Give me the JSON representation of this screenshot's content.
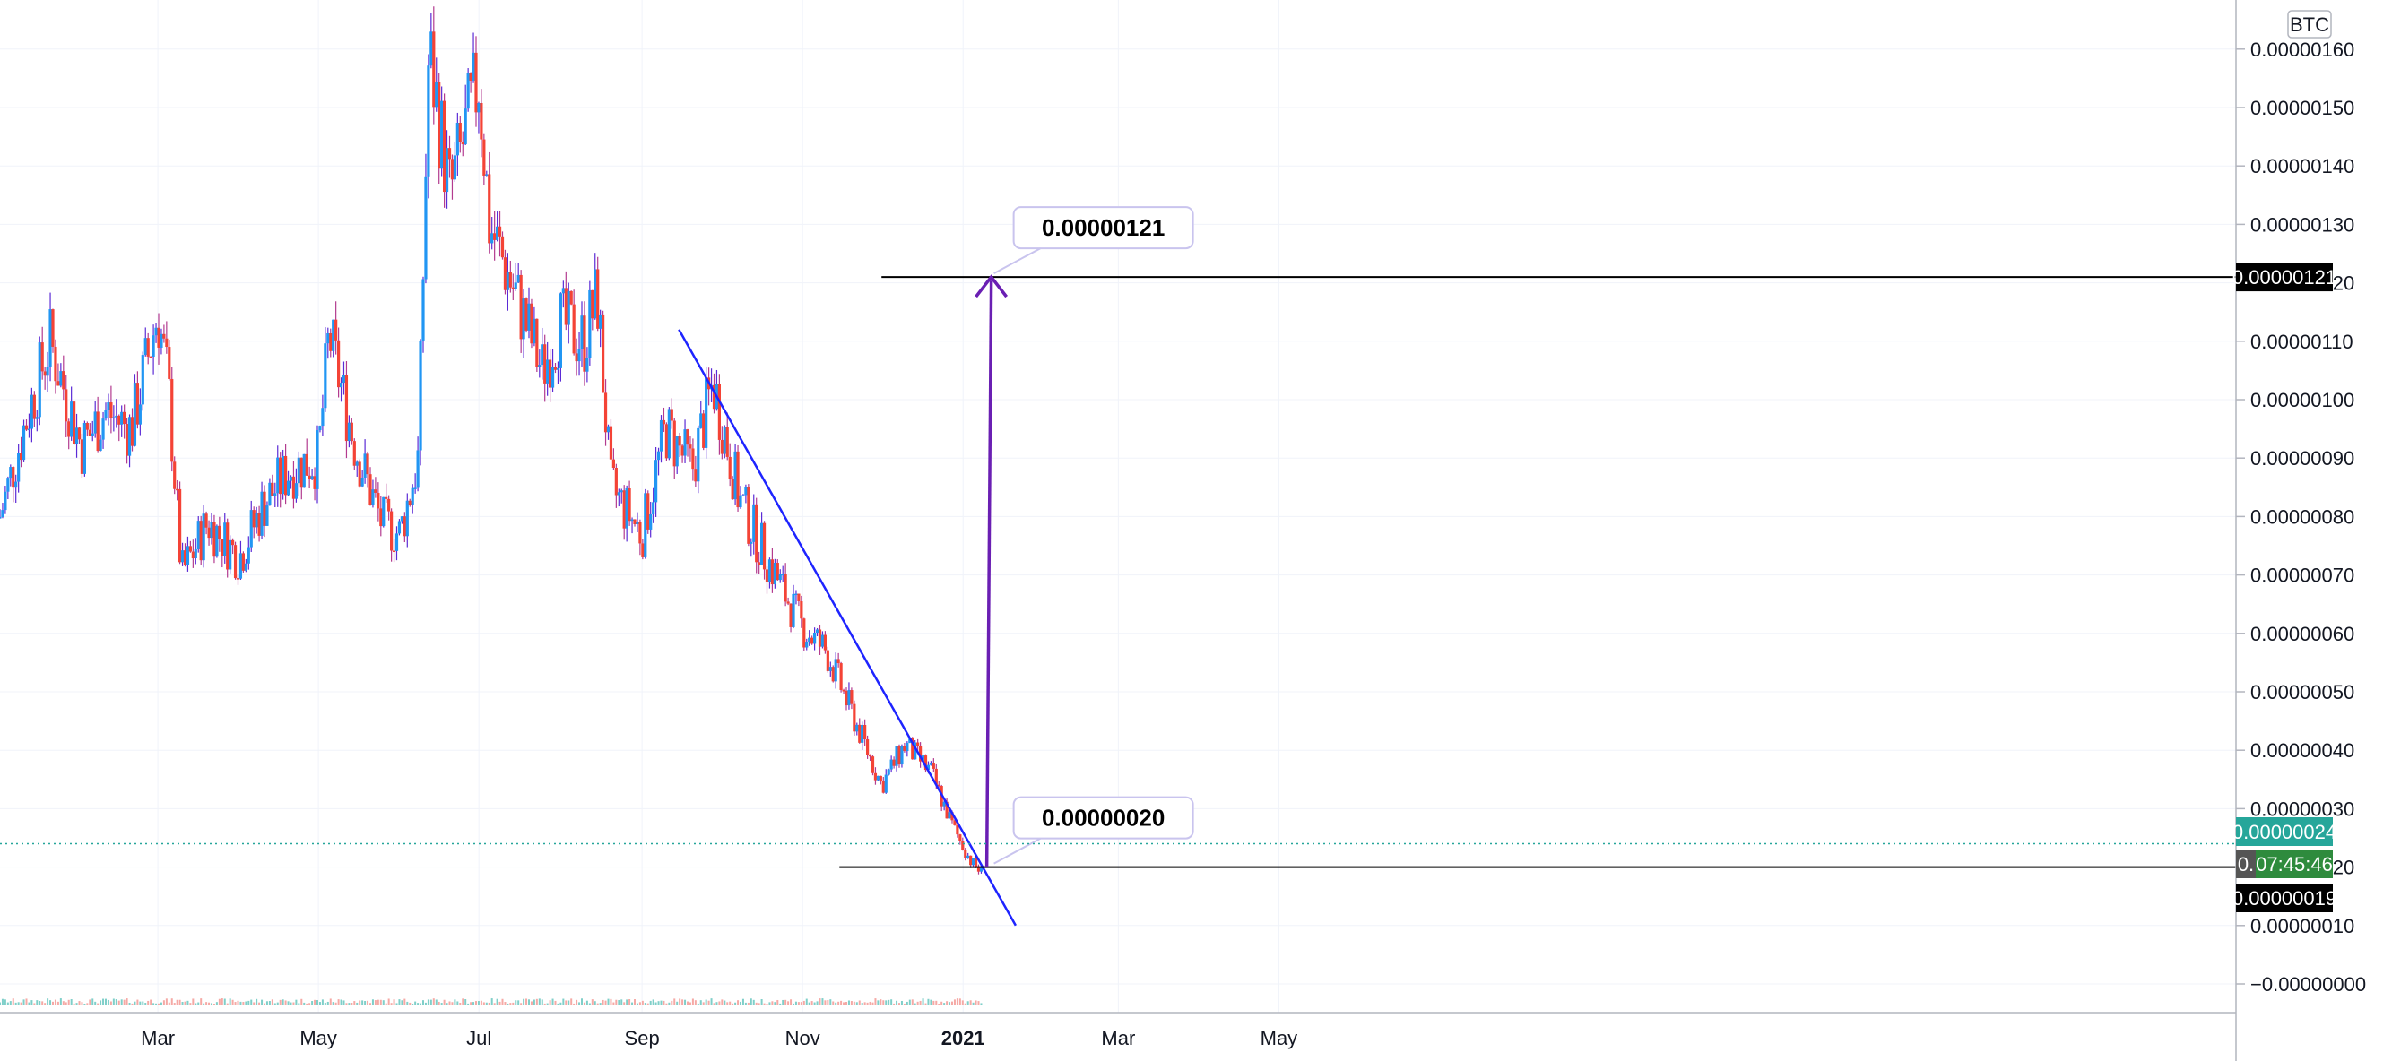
{
  "chart_data": {
    "type": "candlestick",
    "quote_currency": "BTC",
    "ylim": [
      -4e-08,
      1.66e-06
    ],
    "y_ticks": [
      "−0.00000000",
      "0.00000010",
      "0.00000020",
      "0.00000030",
      "0.00000040",
      "0.00000050",
      "0.00000060",
      "0.00000070",
      "0.00000080",
      "0.00000090",
      "0.00000100",
      "0.00000110",
      "0.00000120",
      "0.00000130",
      "0.00000140",
      "0.00000150",
      "0.00000160"
    ],
    "x_ticks": [
      "Mar",
      "May",
      "Jul",
      "Sep",
      "Nov",
      "2021",
      "Mar",
      "May"
    ],
    "x_ticks_bold": [
      "2021"
    ],
    "price_series": [
      {
        "date": "2020-01-01",
        "value": 8e-07
      },
      {
        "date": "2020-01-10",
        "value": 9.5e-07
      },
      {
        "date": "2020-01-20",
        "value": 1.1e-06
      },
      {
        "date": "2020-02-01",
        "value": 9.2e-07
      },
      {
        "date": "2020-02-10",
        "value": 9.8e-07
      },
      {
        "date": "2020-02-20",
        "value": 9.5e-07
      },
      {
        "date": "2020-03-01",
        "value": 1.15e-06
      },
      {
        "date": "2020-03-05",
        "value": 1.02e-06
      },
      {
        "date": "2020-03-10",
        "value": 7e-07
      },
      {
        "date": "2020-03-20",
        "value": 7.9e-07
      },
      {
        "date": "2020-04-01",
        "value": 7.3e-07
      },
      {
        "date": "2020-04-10",
        "value": 8.2e-07
      },
      {
        "date": "2020-04-20",
        "value": 8.8e-07
      },
      {
        "date": "2020-05-01",
        "value": 9e-07
      },
      {
        "date": "2020-05-05",
        "value": 1.11e-06
      },
      {
        "date": "2020-05-15",
        "value": 9.2e-07
      },
      {
        "date": "2020-05-25",
        "value": 7.9e-07
      },
      {
        "date": "2020-06-01",
        "value": 7.7e-07
      },
      {
        "date": "2020-06-08",
        "value": 9e-07
      },
      {
        "date": "2020-06-12",
        "value": 1.6e-06
      },
      {
        "date": "2020-06-20",
        "value": 1.35e-06
      },
      {
        "date": "2020-07-01",
        "value": 1.55e-06
      },
      {
        "date": "2020-07-05",
        "value": 1.3e-06
      },
      {
        "date": "2020-07-15",
        "value": 1.18e-06
      },
      {
        "date": "2020-07-25",
        "value": 1.05e-06
      },
      {
        "date": "2020-08-01",
        "value": 1.13e-06
      },
      {
        "date": "2020-08-10",
        "value": 1.1e-06
      },
      {
        "date": "2020-08-15",
        "value": 1.18e-06
      },
      {
        "date": "2020-08-20",
        "value": 8.5e-07
      },
      {
        "date": "2020-09-01",
        "value": 7.7e-07
      },
      {
        "date": "2020-09-10",
        "value": 9.5e-07
      },
      {
        "date": "2020-09-20",
        "value": 8.8e-07
      },
      {
        "date": "2020-09-28",
        "value": 1.03e-06
      },
      {
        "date": "2020-10-08",
        "value": 8.3e-07
      },
      {
        "date": "2020-10-15",
        "value": 7.6e-07
      },
      {
        "date": "2020-10-25",
        "value": 6.7e-07
      },
      {
        "date": "2020-11-01",
        "value": 6.1e-07
      },
      {
        "date": "2020-11-10",
        "value": 5.7e-07
      },
      {
        "date": "2020-11-20",
        "value": 4.6e-07
      },
      {
        "date": "2020-12-01",
        "value": 3.4e-07
      },
      {
        "date": "2020-12-10",
        "value": 4.1e-07
      },
      {
        "date": "2020-12-20",
        "value": 3.6e-07
      },
      {
        "date": "2020-12-28",
        "value": 2.7e-07
      },
      {
        "date": "2021-01-04",
        "value": 2.1e-07
      },
      {
        "date": "2021-01-08",
        "value": 1.9e-07
      }
    ],
    "trendline": {
      "from": {
        "date": "2020-09-15",
        "value": 1.12e-06
      },
      "to": {
        "date": "2021-01-21",
        "value": 1e-07
      }
    },
    "target_arrow": {
      "date": "2021-01-10",
      "from_value": 2e-07,
      "to_value": 1.21e-06
    },
    "horizontal_lines": [
      {
        "value": 1.21e-06,
        "from_date": "2020-12-01",
        "label": "0.00000121"
      },
      {
        "value": 2e-07,
        "from_date": "2020-11-15",
        "label": "0.00000020"
      }
    ],
    "callouts": [
      "0.00000121",
      "0.00000020"
    ],
    "price_tags": [
      {
        "label": "0.00000121",
        "value": 1.21e-06,
        "color": "#000000"
      },
      {
        "label": "0.00000024",
        "value": 2.4e-07,
        "color": "#26a69a"
      },
      {
        "label": "0.",
        "value": 1.9e-07,
        "color": "#555555"
      },
      {
        "label": "07:45:46",
        "value": 1.9e-07,
        "color": "#2e8b3d"
      },
      {
        "label": "0.00000019",
        "value": 1.9e-07,
        "color": "#000000"
      }
    ],
    "current_price": 2.4e-07
  }
}
